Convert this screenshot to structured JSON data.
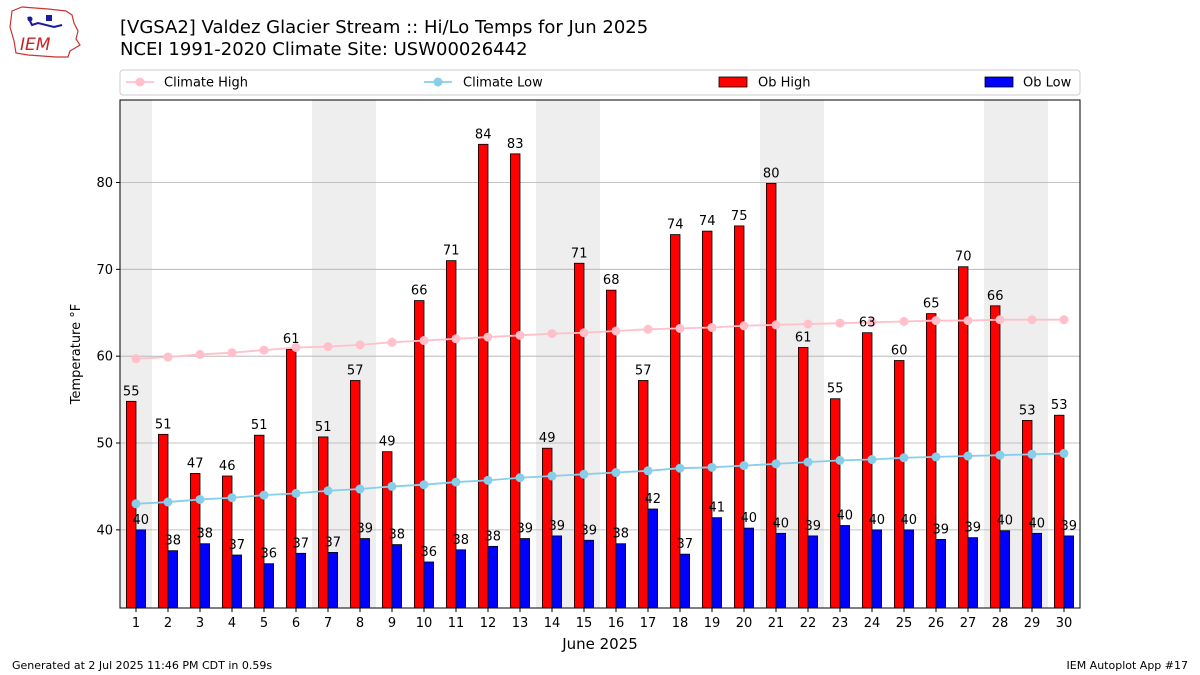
{
  "header": {
    "title_line1": "[VGSA2] Valdez Glacier Stream :: Hi/Lo Temps for Jun 2025",
    "title_line2": "NCEI 1991-2020 Climate Site: USW00026442",
    "logo_text": "IEM"
  },
  "footer": {
    "generated": "Generated at 2 Jul 2025 11:46 PM CDT in 0.59s",
    "app": "IEM Autoplot App #17"
  },
  "colors": {
    "ob_high": "#ff0000",
    "ob_low": "#0000ff",
    "climate_high": "#ffc0cb",
    "climate_low": "#87ceeb",
    "weekend_band": "#eeeeee",
    "grid": "#b0b0b0"
  },
  "chart_data": {
    "type": "bar",
    "xlabel": "June 2025",
    "ylabel": "Temperature °F",
    "ylim": [
      31,
      89.5
    ],
    "yticks": [
      40,
      50,
      60,
      70,
      80
    ],
    "grid": "horizontal",
    "legend_position": "top",
    "categories": [
      "1",
      "2",
      "3",
      "4",
      "5",
      "6",
      "7",
      "8",
      "9",
      "10",
      "11",
      "12",
      "13",
      "14",
      "15",
      "16",
      "17",
      "18",
      "19",
      "20",
      "21",
      "22",
      "23",
      "24",
      "25",
      "26",
      "27",
      "28",
      "29",
      "30"
    ],
    "shaded_days": [
      1,
      7,
      8,
      14,
      15,
      21,
      22,
      28,
      29
    ],
    "series": [
      {
        "name": "Climate High",
        "type": "line",
        "values": [
          59.7,
          59.9,
          60.2,
          60.4,
          60.7,
          61.0,
          61.1,
          61.3,
          61.6,
          61.8,
          62.0,
          62.2,
          62.4,
          62.6,
          62.7,
          62.9,
          63.1,
          63.2,
          63.3,
          63.5,
          63.6,
          63.7,
          63.8,
          63.9,
          64.0,
          64.1,
          64.1,
          64.2,
          64.2,
          64.2
        ]
      },
      {
        "name": "Climate Low",
        "type": "line",
        "values": [
          43.0,
          43.2,
          43.5,
          43.7,
          44.0,
          44.2,
          44.5,
          44.7,
          45.0,
          45.2,
          45.5,
          45.7,
          46.0,
          46.2,
          46.4,
          46.6,
          46.8,
          47.1,
          47.2,
          47.4,
          47.6,
          47.8,
          48.0,
          48.1,
          48.3,
          48.4,
          48.5,
          48.6,
          48.7,
          48.8
        ]
      },
      {
        "name": "Ob High",
        "type": "bar",
        "values": [
          55,
          51,
          47,
          46,
          51,
          61,
          51,
          57,
          49,
          66,
          71,
          84,
          83,
          49,
          71,
          68,
          57,
          74,
          74,
          75,
          80,
          61,
          55,
          63,
          60,
          65,
          70,
          66,
          53,
          53
        ],
        "values_precise": [
          54.8,
          51.0,
          46.5,
          46.2,
          50.9,
          60.8,
          50.7,
          57.2,
          49.0,
          66.4,
          71.0,
          84.4,
          83.3,
          49.4,
          70.7,
          67.6,
          57.2,
          74.0,
          74.4,
          75.0,
          79.9,
          61.0,
          55.1,
          62.7,
          59.5,
          64.9,
          70.3,
          65.8,
          52.6,
          53.2
        ]
      },
      {
        "name": "Ob Low",
        "type": "bar",
        "values": [
          40,
          38,
          38,
          37,
          36,
          37,
          37,
          39,
          38,
          36,
          38,
          38,
          39,
          39,
          39,
          38,
          42,
          37,
          41,
          40,
          40,
          39,
          40,
          40,
          40,
          39,
          39,
          40,
          40,
          39
        ],
        "values_precise": [
          40.0,
          37.6,
          38.4,
          37.1,
          36.1,
          37.3,
          37.4,
          39.0,
          38.3,
          36.3,
          37.7,
          38.1,
          39.0,
          39.3,
          38.8,
          38.4,
          42.4,
          37.2,
          41.4,
          40.2,
          39.6,
          39.3,
          40.5,
          40.0,
          40.0,
          38.9,
          39.1,
          39.9,
          39.6,
          39.3
        ]
      }
    ]
  }
}
